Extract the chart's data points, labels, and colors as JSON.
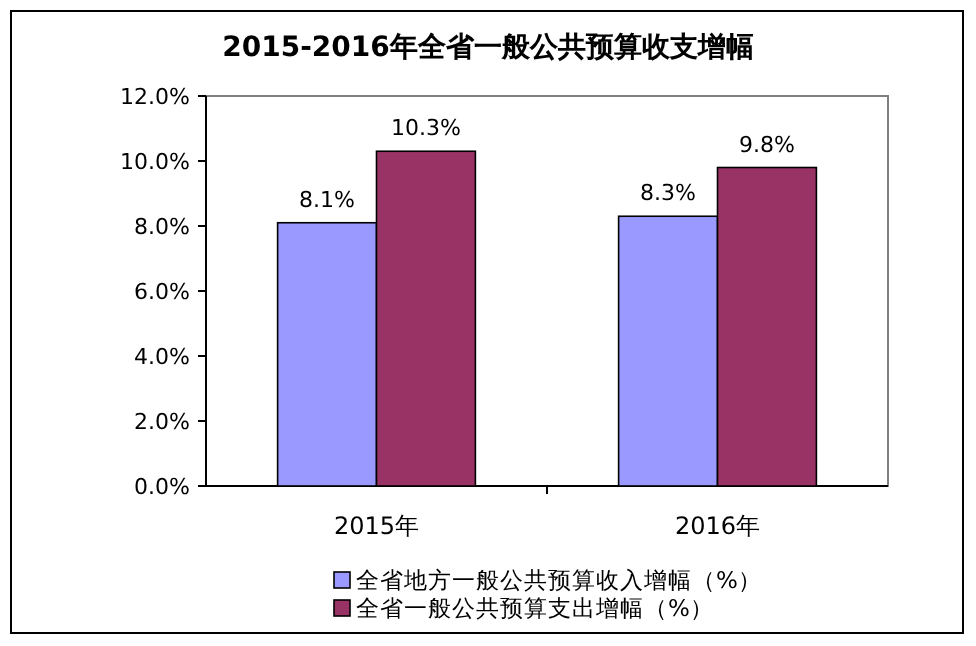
{
  "chart_data": {
    "type": "bar",
    "title": "2015-2016年全省一般公共预算收支增幅",
    "categories": [
      "2015年",
      "2016年"
    ],
    "series": [
      {
        "name": "全省地方一般公共预算收入增幅（%）",
        "color": "#9999ff",
        "values": [
          8.1,
          8.3
        ],
        "value_labels": [
          "8.1%",
          "8.3%"
        ]
      },
      {
        "name": "全省一般公共预算支出增幅（%）",
        "color": "#993366",
        "values": [
          10.3,
          9.8
        ],
        "value_labels": [
          "10.3%",
          "9.8%"
        ]
      }
    ],
    "ylim": [
      0,
      12
    ],
    "yticks": [
      {
        "value": 0,
        "label": "0.0%"
      },
      {
        "value": 2,
        "label": "2.0%"
      },
      {
        "value": 4,
        "label": "4.0%"
      },
      {
        "value": 6,
        "label": "6.0%"
      },
      {
        "value": 8,
        "label": "8.0%"
      },
      {
        "value": 10,
        "label": "10.0%"
      },
      {
        "value": 12,
        "label": "12.0%"
      }
    ],
    "grid": false,
    "legend": "bottom"
  }
}
